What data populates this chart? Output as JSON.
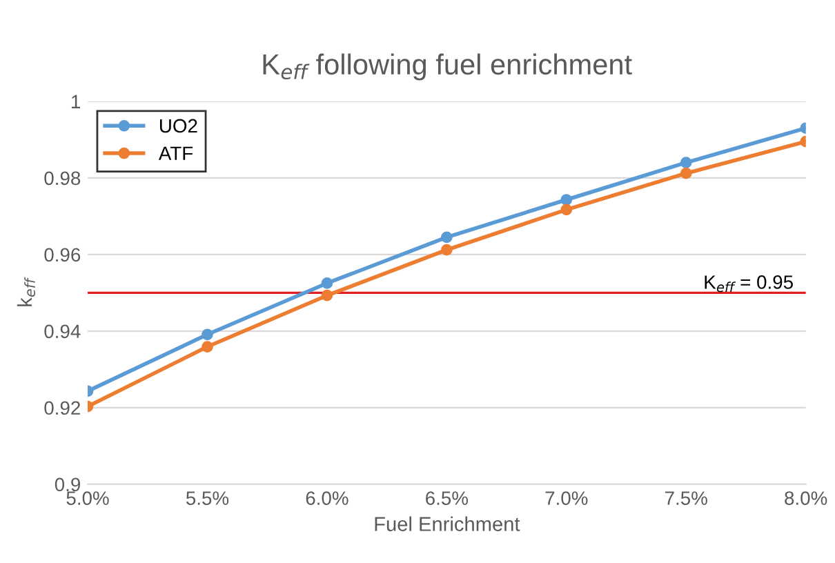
{
  "chart_data": {
    "type": "line",
    "title": "K$_{eff}$ following fuel enrichment",
    "xlabel": "Fuel Enrichment",
    "ylabel": "k$_{eff}$",
    "x": [
      5.0,
      5.5,
      6.0,
      6.5,
      7.0,
      7.5,
      8.0
    ],
    "series": [
      {
        "name": "UO2",
        "color": "#5b9bd5",
        "values": [
          0.9243,
          0.9391,
          0.9525,
          0.9645,
          0.9743,
          0.984,
          0.993
        ]
      },
      {
        "name": "ATF",
        "color": "#ed7d31",
        "values": [
          0.9203,
          0.9359,
          0.9493,
          0.9612,
          0.9717,
          0.9812,
          0.9895
        ]
      }
    ],
    "xlim": [
      5.0,
      8.0
    ],
    "xticks": [
      {
        "value": 5.0,
        "label": "5.0%"
      },
      {
        "value": 5.5,
        "label": "5.5%"
      },
      {
        "value": 6.0,
        "label": "6.0%"
      },
      {
        "value": 6.5,
        "label": "6.5%"
      },
      {
        "value": 7.0,
        "label": "7.0%"
      },
      {
        "value": 7.5,
        "label": "7.5%"
      },
      {
        "value": 8.0,
        "label": "8.0%"
      }
    ],
    "ylim": [
      0.9,
      1
    ],
    "yticks": [
      0.9,
      0.92,
      0.94,
      0.96,
      0.98,
      1
    ],
    "ref_lines": [
      {
        "axis": "y",
        "value": 0.95,
        "label": "K$_{eff}$ = 0.95",
        "color": "#e02020"
      }
    ],
    "grid": "y",
    "legend": "top left",
    "marker": "circle",
    "line_style": "solid"
  }
}
